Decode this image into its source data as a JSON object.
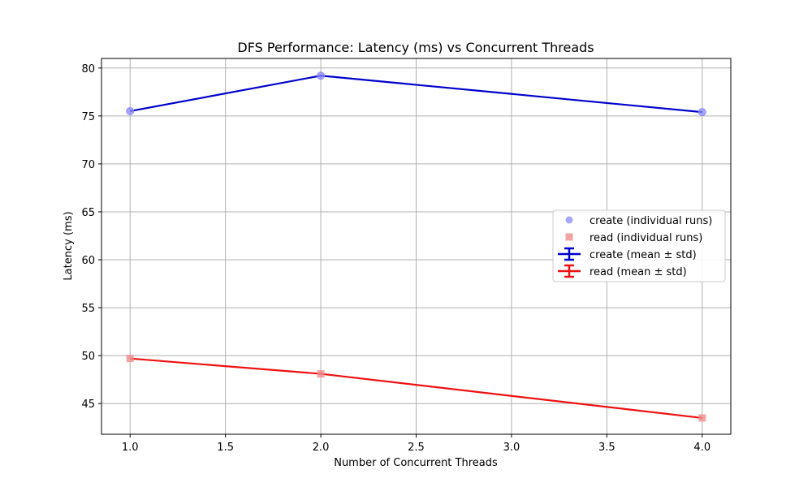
{
  "chart_data": {
    "type": "line",
    "title": "DFS Performance: Latency (ms) vs Concurrent Threads",
    "xlabel": "Number of Concurrent Threads",
    "ylabel": "Latency (ms)",
    "xlim": [
      0.85,
      4.15
    ],
    "ylim": [
      41.8,
      81.0
    ],
    "xticks": [
      1.0,
      1.5,
      2.0,
      2.5,
      3.0,
      3.5,
      4.0
    ],
    "xtick_labels": [
      "1.0",
      "1.5",
      "2.0",
      "2.5",
      "3.0",
      "3.5",
      "4.0"
    ],
    "yticks": [
      45,
      50,
      55,
      60,
      65,
      70,
      75,
      80
    ],
    "ytick_labels": [
      "45",
      "50",
      "55",
      "60",
      "65",
      "70",
      "75",
      "80"
    ],
    "grid": true,
    "legend_position": "center-right",
    "series": [
      {
        "name": "create (mean ± std)",
        "kind": "line",
        "color": "#0000cc",
        "x": [
          1,
          2,
          4
        ],
        "y": [
          75.5,
          79.2,
          75.4
        ]
      },
      {
        "name": "read (mean ± std)",
        "kind": "line",
        "color": "#ee1111",
        "x": [
          1,
          2,
          4
        ],
        "y": [
          49.7,
          48.1,
          43.5
        ]
      },
      {
        "name": "create (individual runs)",
        "kind": "scatter",
        "marker": "circle",
        "color": "#8888ff",
        "x": [
          1,
          2,
          4
        ],
        "y": [
          75.5,
          79.2,
          75.4
        ]
      },
      {
        "name": "read (individual runs)",
        "kind": "scatter",
        "marker": "square",
        "color": "#f08c8c",
        "x": [
          1,
          2,
          4
        ],
        "y": [
          49.7,
          48.1,
          43.5
        ]
      }
    ],
    "legend": [
      {
        "label": "create (individual runs)",
        "kind": "scatter",
        "marker": "circle",
        "color": "#8888ff"
      },
      {
        "label": "read (individual runs)",
        "kind": "scatter",
        "marker": "square",
        "color": "#f08c8c"
      },
      {
        "label": "create (mean ± std)",
        "kind": "errorbar",
        "color": "#0000cc"
      },
      {
        "label": "read (mean ± std)",
        "kind": "errorbar",
        "color": "#ee1111"
      }
    ]
  }
}
